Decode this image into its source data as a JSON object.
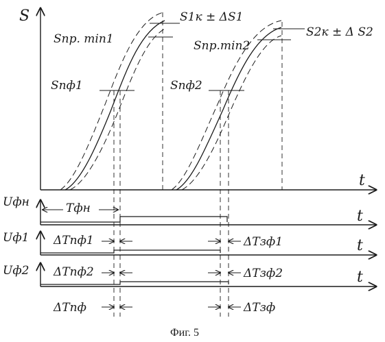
{
  "figure": {
    "caption": "Фиг. 5"
  },
  "top_plot": {
    "y_label": "S",
    "x_label": "t",
    "labels": {
      "s1k": "S1к ± ΔS1",
      "spr_min1": "Sпр. min1",
      "s2k": "S2к ± Δ S2",
      "spr_min2": "Sпр.min2",
      "spf1": "Sпф1",
      "spf2": "Sпф2"
    }
  },
  "signal_ufn": {
    "y_label": "Uфн",
    "x_label": "t",
    "interval_label": "Tфн"
  },
  "signal_uf1": {
    "y_label": "Uф1",
    "x_label": "t",
    "left_label": "ΔTпф1",
    "right_label": "ΔTзф1"
  },
  "signal_uf2": {
    "y_label": "Uф2",
    "x_label": "t",
    "left_label": "ΔTпф2",
    "right_label": "ΔTзф2"
  },
  "bottom_labels": {
    "left_label": "ΔTпф",
    "right_label": "ΔTзф"
  }
}
